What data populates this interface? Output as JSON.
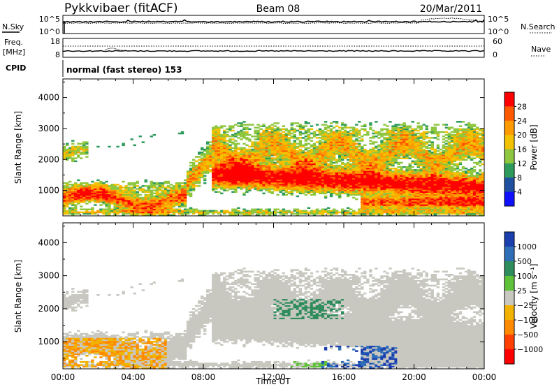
{
  "header": {
    "station": "Pykkvibaer (fitACF)",
    "beam": "Beam 08",
    "date": "20/Mar/2011"
  },
  "top_panels": {
    "nsky_label": "N.Sky",
    "nsky_ticks": [
      "10^5",
      "10^0"
    ],
    "nsearch_label": "N.Search",
    "nsearch_ticks": [
      "10^5",
      "10^0"
    ],
    "freq_label_1": "Freq.",
    "freq_label_2": "[MHz]",
    "freq_ticks": [
      "18",
      "8"
    ],
    "nave_label": "Nave",
    "nave_ticks": [
      "60",
      "0"
    ],
    "cpid_label": "CPID",
    "cpid_text": "normal (fast stereo) 153"
  },
  "chart_data": [
    {
      "type": "heatmap",
      "name": "power",
      "ylabel": "Slant Range [km]",
      "xlabel": "Time UT",
      "ylim": [
        180,
        4600
      ],
      "yticks": [
        "1000",
        "2000",
        "3000",
        "4000"
      ],
      "xticks": [
        "00:00",
        "04:00",
        "08:00",
        "12:00",
        "16:00",
        "20:00",
        "00:00"
      ],
      "colorbar": {
        "label": "Power [dB]",
        "ticks": [
          "28",
          "24",
          "20",
          "16",
          "12",
          "8",
          "4"
        ],
        "colors": [
          "#ff0000",
          "#ff5a00",
          "#ff9a00",
          "#f2c200",
          "#8ec63f",
          "#2e9b5c",
          "#2050a0",
          "#1010ff"
        ]
      }
    },
    {
      "type": "heatmap",
      "name": "velocity",
      "ylabel": "Slant Range [km]",
      "xlabel": "Time UT",
      "ylim": [
        180,
        4600
      ],
      "yticks": [
        "1000",
        "2000",
        "3000",
        "4000"
      ],
      "xticks": [
        "00:00",
        "04:00",
        "08:00",
        "12:00",
        "16:00",
        "20:00",
        "00:00"
      ],
      "colorbar": {
        "label": "Velocity [m s⁻¹]",
        "ticks": [
          "1000",
          "500",
          "100",
          "25",
          "−25",
          "−100",
          "−500",
          "−1000"
        ],
        "colors": [
          "#1c3fb0",
          "#2f6fb8",
          "#2f8c5c",
          "#5fc23a",
          "#c8c8c0",
          "#f2b200",
          "#ff8a00",
          "#ff4000",
          "#ff0000"
        ]
      }
    }
  ],
  "x_axis_title": "Time UT"
}
